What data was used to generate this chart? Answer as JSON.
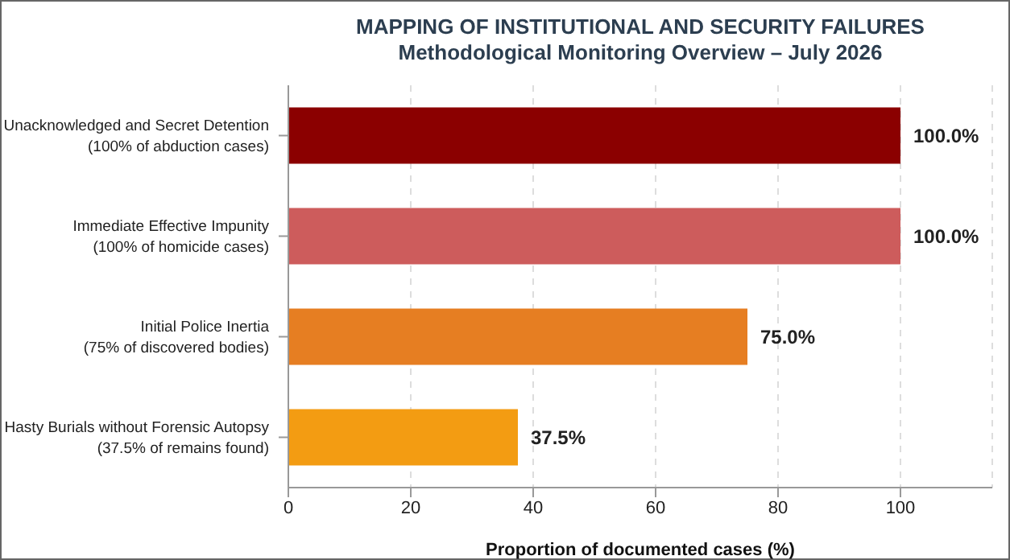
{
  "chart_data": {
    "type": "bar",
    "orientation": "horizontal",
    "title": "MAPPING OF INSTITUTIONAL AND SECURITY FAILURES",
    "subtitle": "Methodological Monitoring Overview – July 2026",
    "categories": [
      "Unacknowledged and Secret Detention\n(100% of abduction cases)",
      "Immediate Effective Impunity\n(100% of homicide cases)",
      "Initial Police Inertia\n(75% of discovered bodies)",
      "Hasty Burials without Forensic Autopsy\n(37.5% of remains found)"
    ],
    "values": [
      100,
      100,
      75,
      37.5
    ],
    "colors": [
      "#8b0000",
      "#cd5c5c",
      "#e67e22",
      "#f39c12"
    ],
    "value_labels": [
      "100.0%",
      "100.0%",
      "75.0%",
      "37.5%"
    ],
    "xlabel": "Proportion of documented cases (%)",
    "xlim": [
      0,
      115
    ],
    "xticks": [
      0,
      20,
      40,
      60,
      80,
      100
    ],
    "grid": "x"
  }
}
